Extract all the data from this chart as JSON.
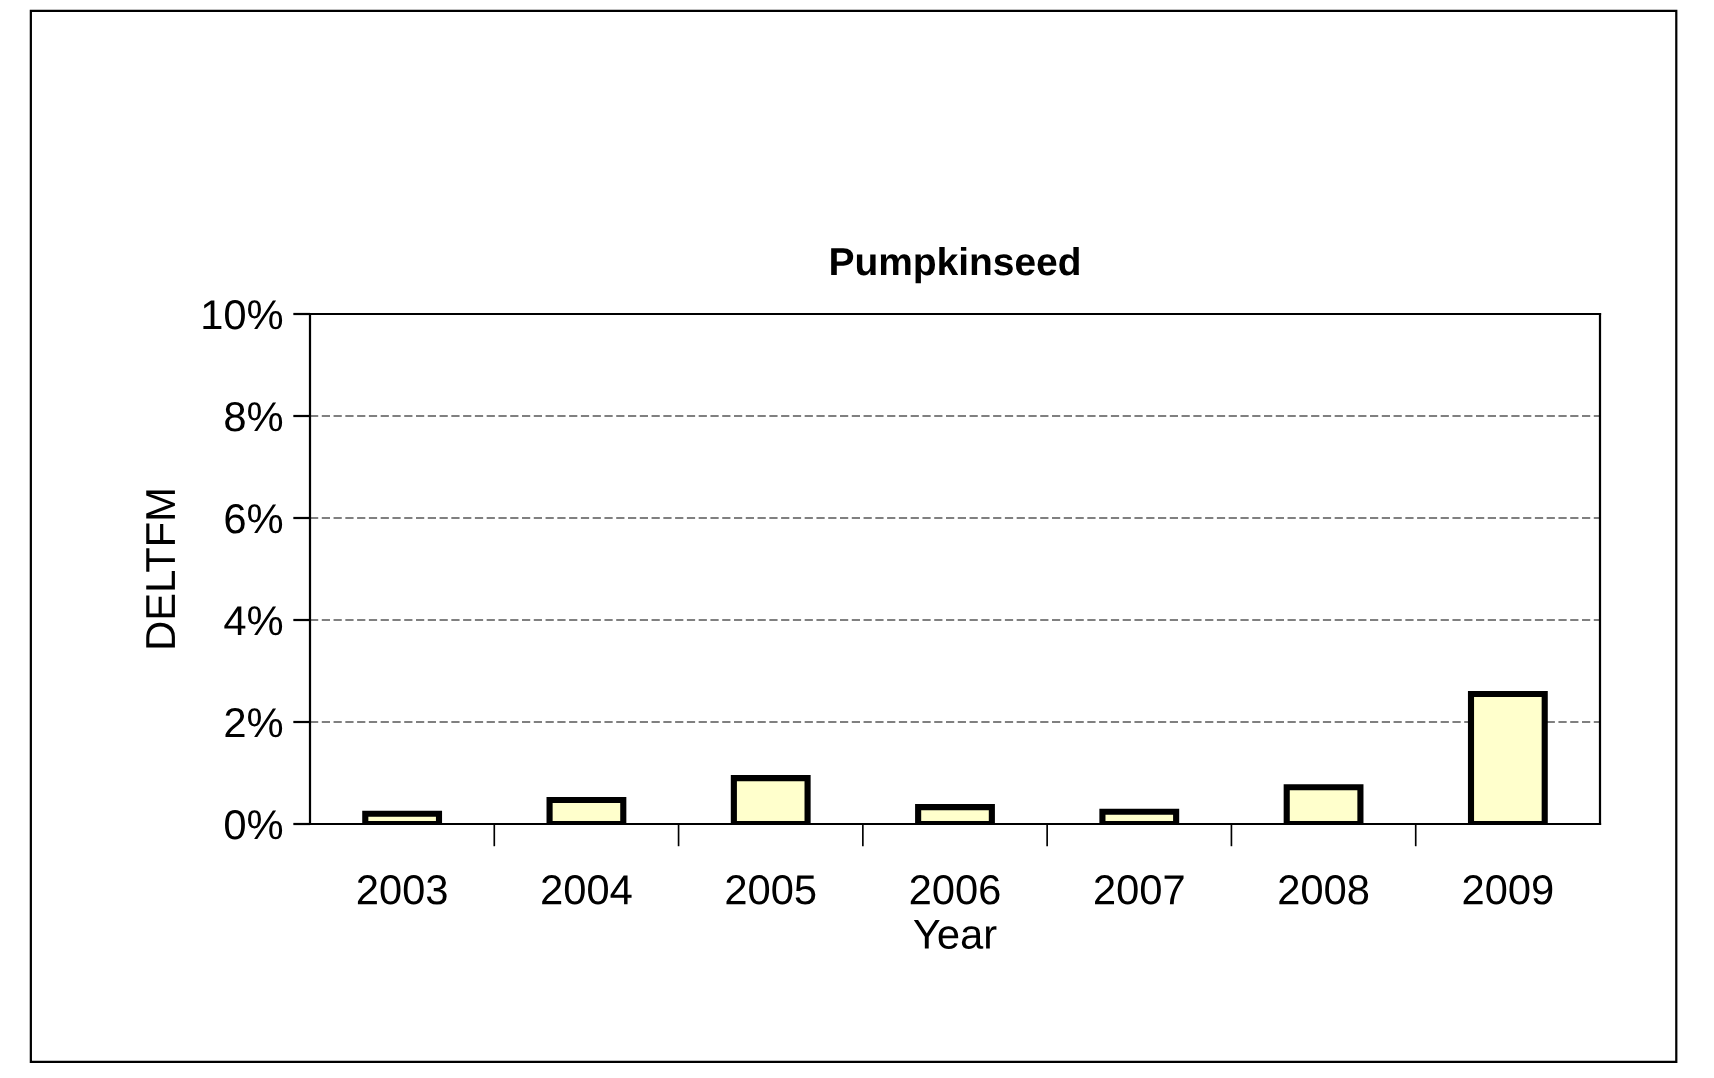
{
  "chart_data": {
    "type": "bar",
    "title": "Pumpkinseed",
    "xlabel": "Year",
    "ylabel": "DELTFM",
    "categories": [
      "2003",
      "2004",
      "2005",
      "2006",
      "2007",
      "2008",
      "2009"
    ],
    "values": [
      0.2,
      0.47,
      0.9,
      0.33,
      0.24,
      0.72,
      2.55
    ],
    "color": "#ffffcc",
    "ylim": [
      0,
      10
    ],
    "yticks": [
      {
        "value": 0,
        "label": "0%"
      },
      {
        "value": 2,
        "label": "2%"
      },
      {
        "value": 4,
        "label": "4%"
      },
      {
        "value": 6,
        "label": "6%"
      },
      {
        "value": 8,
        "label": "8%"
      },
      {
        "value": 10,
        "label": "10%"
      }
    ],
    "grid": "y"
  }
}
